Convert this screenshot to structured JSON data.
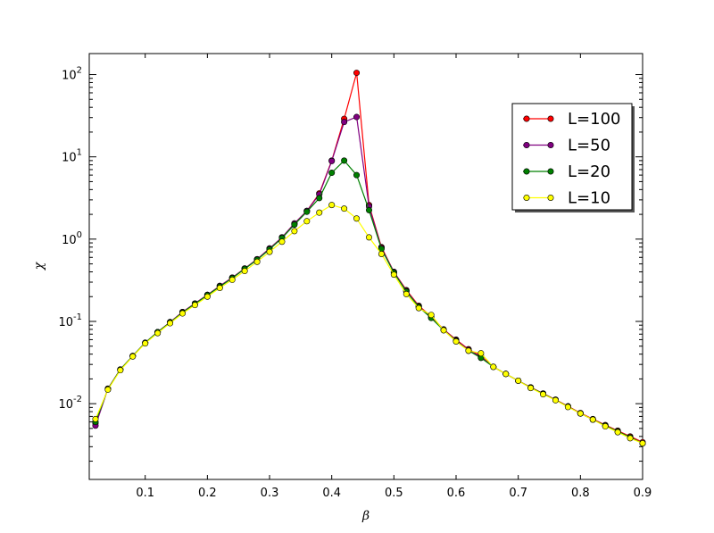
{
  "chart_data": {
    "type": "line",
    "xlabel": "β",
    "ylabel": "χ",
    "xlim": [
      0.01,
      0.9
    ],
    "ylim": [
      0.0012,
      180
    ],
    "yscale": "log",
    "x_ticks": [
      0.1,
      0.2,
      0.3,
      0.4,
      0.5,
      0.6,
      0.7,
      0.8,
      0.9
    ],
    "x_tick_labels": [
      "0.1",
      "0.2",
      "0.3",
      "0.4",
      "0.5",
      "0.6",
      "0.7",
      "0.8",
      "0.9"
    ],
    "y_ticks": [
      {
        "value": 0.01,
        "base": "10",
        "exp": "-2"
      },
      {
        "value": 0.1,
        "base": "10",
        "exp": "-1"
      },
      {
        "value": 1,
        "base": "10",
        "exp": "0"
      },
      {
        "value": 10,
        "base": "10",
        "exp": "1"
      },
      {
        "value": 100,
        "base": "10",
        "exp": "2"
      }
    ],
    "grid": false,
    "legend_position": "right",
    "x": [
      0.02,
      0.04,
      0.06,
      0.08,
      0.1,
      0.12,
      0.14,
      0.16,
      0.18,
      0.2,
      0.22,
      0.24,
      0.26,
      0.28,
      0.3,
      0.32,
      0.34,
      0.36,
      0.38,
      0.4,
      0.42,
      0.44,
      0.46,
      0.48,
      0.5,
      0.52,
      0.54,
      0.56,
      0.58,
      0.6,
      0.62,
      0.64,
      0.66,
      0.68,
      0.7,
      0.72,
      0.74,
      0.76,
      0.78,
      0.8,
      0.82,
      0.84,
      0.86,
      0.88,
      0.9
    ],
    "series": [
      {
        "name": "L=100",
        "color": "#ff0000",
        "values": [
          0.0058,
          0.0152,
          0.026,
          0.038,
          0.055,
          0.074,
          0.098,
          0.13,
          0.165,
          0.21,
          0.27,
          0.34,
          0.44,
          0.57,
          0.77,
          1.05,
          1.55,
          2.2,
          3.6,
          9.0,
          29.0,
          105.0,
          2.6,
          0.8,
          0.4,
          0.24,
          0.155,
          0.115,
          0.08,
          0.06,
          0.046,
          0.038,
          0.028,
          0.023,
          0.019,
          0.0158,
          0.0133,
          0.0112,
          0.0093,
          0.0077,
          0.0065,
          0.0055,
          0.0047,
          0.004,
          0.0034
        ]
      },
      {
        "name": "L=50",
        "color": "#800080",
        "values": [
          0.0054,
          0.0152,
          0.026,
          0.038,
          0.055,
          0.074,
          0.098,
          0.13,
          0.165,
          0.21,
          0.27,
          0.34,
          0.44,
          0.57,
          0.77,
          1.05,
          1.55,
          2.2,
          3.5,
          8.9,
          26.5,
          30.5,
          2.5,
          0.78,
          0.4,
          0.235,
          0.152,
          0.112,
          0.079,
          0.059,
          0.045,
          0.037,
          0.028,
          0.023,
          0.019,
          0.0157,
          0.0132,
          0.0111,
          0.0092,
          0.0076,
          0.0064,
          0.0054,
          0.0046,
          0.0039,
          0.0033
        ]
      },
      {
        "name": "L=20",
        "color": "#008000",
        "values": [
          0.006,
          0.015,
          0.026,
          0.038,
          0.055,
          0.074,
          0.097,
          0.128,
          0.163,
          0.208,
          0.265,
          0.335,
          0.435,
          0.56,
          0.75,
          1.03,
          1.5,
          2.15,
          3.15,
          6.4,
          9.0,
          6.0,
          2.25,
          0.76,
          0.39,
          0.23,
          0.15,
          0.11,
          0.078,
          0.058,
          0.044,
          0.036,
          0.028,
          0.023,
          0.019,
          0.0157,
          0.0132,
          0.0111,
          0.0092,
          0.0076,
          0.0064,
          0.0054,
          0.0046,
          0.0039,
          0.0033
        ]
      },
      {
        "name": "L=10",
        "color": "#ffff00",
        "values": [
          0.0065,
          0.0148,
          0.0255,
          0.0375,
          0.054,
          0.072,
          0.095,
          0.125,
          0.158,
          0.2,
          0.255,
          0.32,
          0.41,
          0.53,
          0.7,
          0.93,
          1.25,
          1.65,
          2.1,
          2.6,
          2.35,
          1.78,
          1.05,
          0.66,
          0.37,
          0.215,
          0.145,
          0.12,
          0.078,
          0.057,
          0.044,
          0.041,
          0.028,
          0.023,
          0.019,
          0.0155,
          0.013,
          0.011,
          0.0091,
          0.0076,
          0.0064,
          0.0053,
          0.0045,
          0.0038,
          0.0033
        ]
      }
    ]
  }
}
